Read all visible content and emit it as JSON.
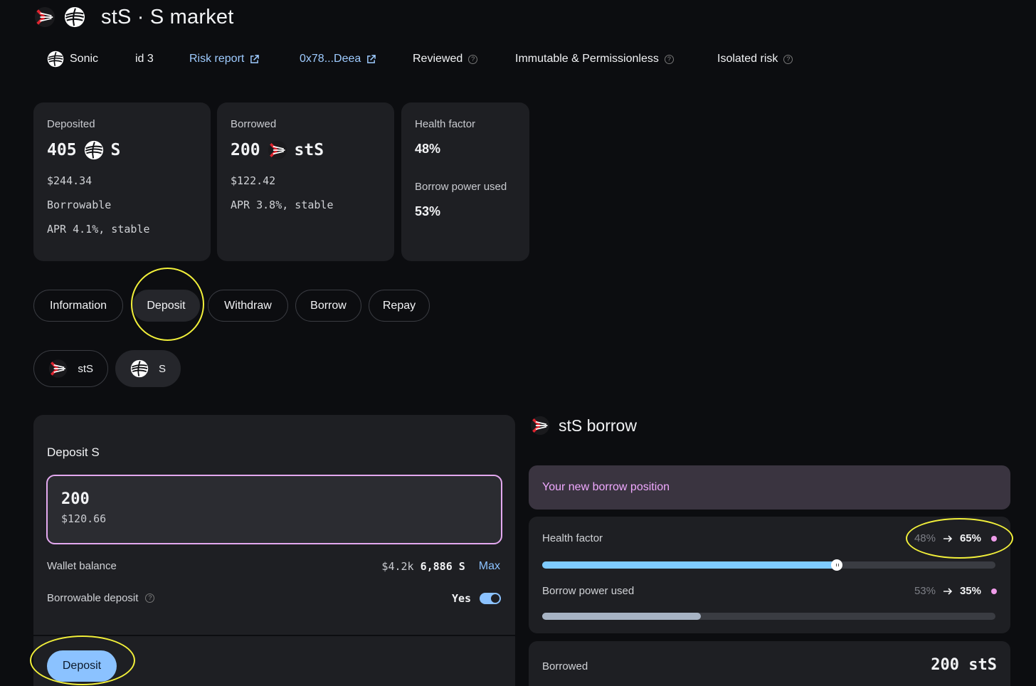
{
  "header": {
    "title": "stS · S market",
    "meta": {
      "network": "Sonic",
      "id": "id 3",
      "risk_report": "Risk report",
      "address": "0x78...Deea",
      "reviewed": "Reviewed",
      "immutable": "Immutable & Permissionless",
      "isolated": "Isolated risk"
    }
  },
  "stats": {
    "deposited": {
      "label": "Deposited",
      "amount": "405",
      "token": "S",
      "usd": "$244.34",
      "borrowable": "Borrowable",
      "apr": "APR 4.1%, stable"
    },
    "borrowed": {
      "label": "Borrowed",
      "amount": "200",
      "token": "stS",
      "usd": "$122.42",
      "apr": "APR 3.8%, stable"
    },
    "health": {
      "label": "Health factor",
      "value": "48%",
      "power_label": "Borrow power used",
      "power_value": "53%"
    }
  },
  "tabs": [
    "Information",
    "Deposit",
    "Withdraw",
    "Borrow",
    "Repay"
  ],
  "assets": [
    "stS",
    "S"
  ],
  "deposit_panel": {
    "title": "Deposit S",
    "amount": "200",
    "amount_usd": "$120.66",
    "wallet_label": "Wallet balance",
    "wallet_usd": "$4.2k",
    "wallet_amount": "6,886",
    "wallet_token": "S",
    "max": "Max",
    "borrowable_label": "Borrowable deposit",
    "borrowable_value": "Yes",
    "submit": "Deposit"
  },
  "borrow_section": {
    "title": "stS borrow",
    "banner": "Your new borrow position",
    "health_label": "Health factor",
    "health_old": "48%",
    "health_new": "65%",
    "health_fill_percent": 65,
    "power_label": "Borrow power used",
    "power_old": "53%",
    "power_new": "35%",
    "power_fill_percent": 35,
    "borrowed_label": "Borrowed",
    "borrowed_value": "200 stS"
  },
  "colors": {
    "accent": "#8bc2ff",
    "pink": "#ef9ce9",
    "health_bar": "#7ecbff",
    "power_bar": "#a7b3c4",
    "highlight": "#f2f03a"
  },
  "icons": {
    "network": "sonic-icon",
    "s_token": "s-token-icon",
    "sts_token": "sts-token-icon"
  }
}
